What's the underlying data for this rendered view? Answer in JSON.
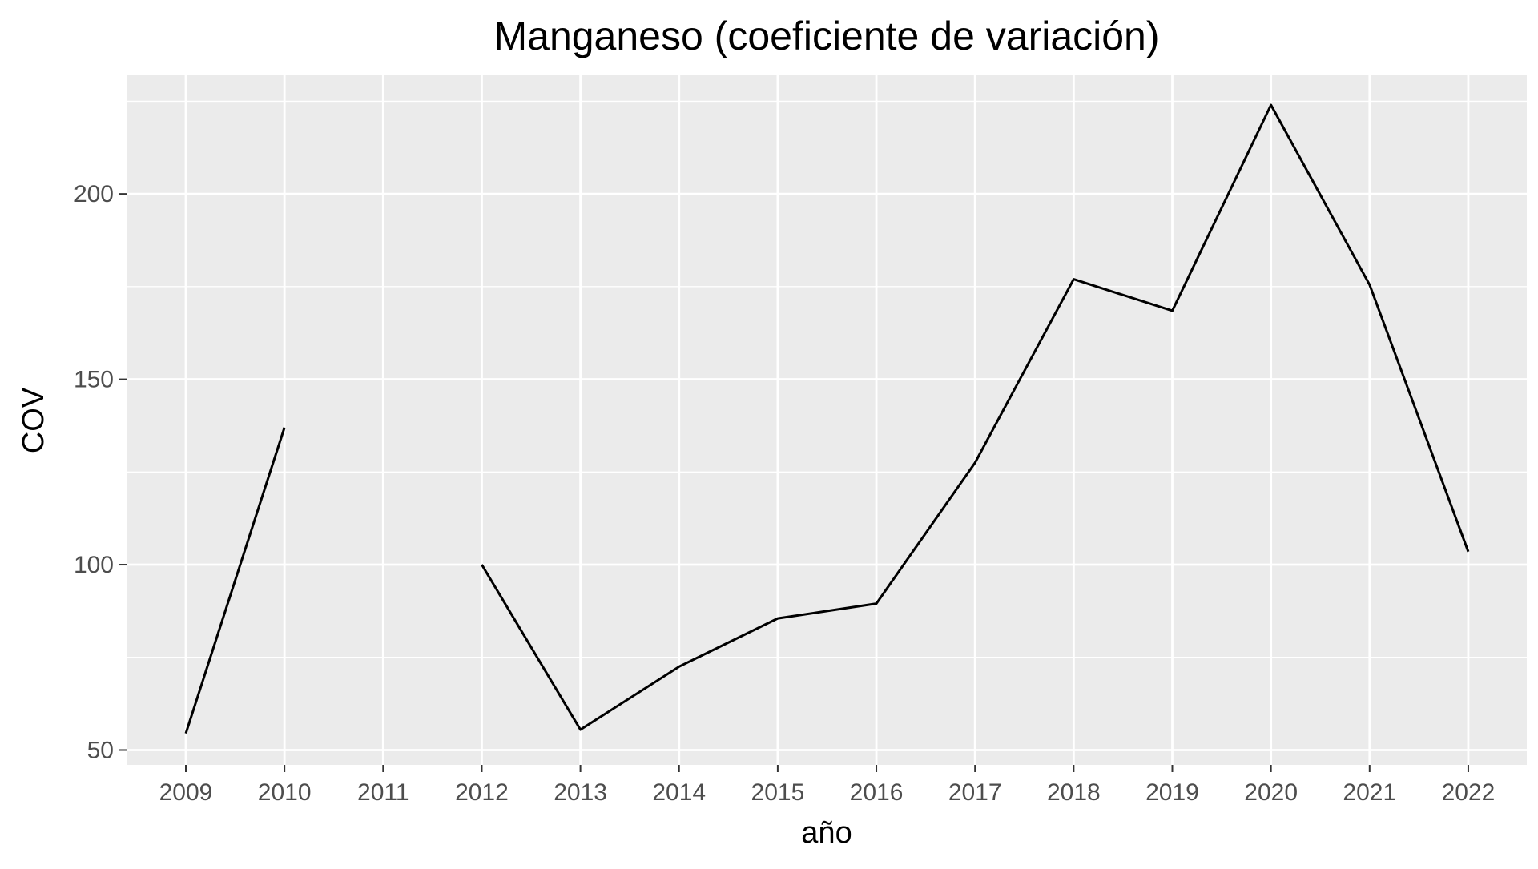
{
  "chart_data": {
    "type": "line",
    "title": "Manganeso (coeficiente de variación)",
    "xlabel": "año",
    "ylabel": "COV",
    "categories": [
      "2009",
      "2010",
      "2011",
      "2012",
      "2013",
      "2014",
      "2015",
      "2016",
      "2017",
      "2018",
      "2019",
      "2020",
      "2021",
      "2022"
    ],
    "series": [
      {
        "values": [
          54.5,
          137,
          null,
          100,
          55.5,
          72.5,
          85.5,
          89.5,
          127.5,
          177,
          168.5,
          224,
          175.5,
          103.5
        ]
      }
    ],
    "ylim": [
      46,
      232
    ],
    "yticks": [
      50,
      100,
      150,
      200
    ],
    "y_minor_ticks": [
      75,
      125,
      175,
      225
    ],
    "grid": true,
    "legend": "none",
    "colors": {
      "panel_background": "#ebebeb",
      "grid_major": "#ffffff",
      "grid_minor": "#ffffff",
      "line": "#000000",
      "tick_label": "#4d4d4d",
      "tick_mark": "#333333",
      "text": "#000000"
    }
  }
}
